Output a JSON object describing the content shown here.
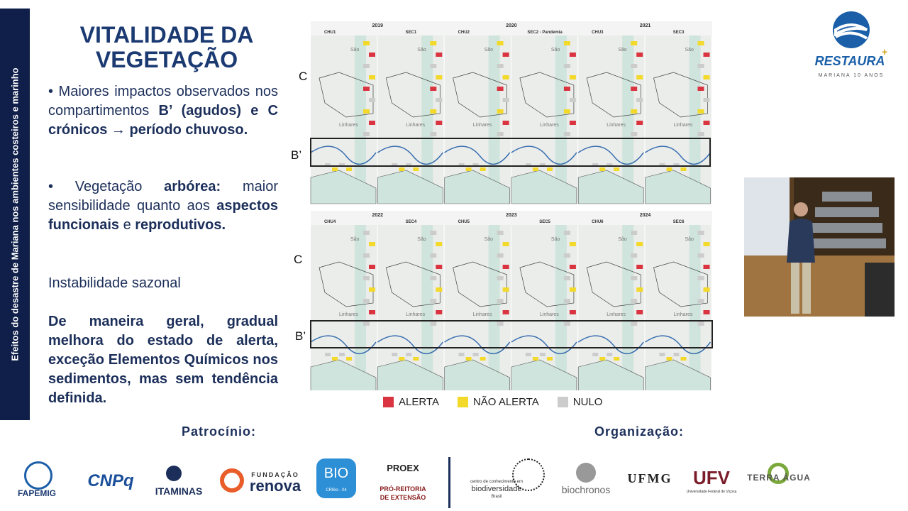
{
  "sidebar": "Efeitos do desastre de Mariana nos ambientes costeiros e marinho",
  "title": "VITALIDADE DA VEGETAÇÃO",
  "paragraphs": [
    [
      {
        "text": "• Maiores impactos observados nos compartimentos ",
        "bold": false
      },
      {
        "text": "B’ (agudos) e C crónicos → período chuvoso.",
        "bold": true
      }
    ],
    [
      {
        "text": "• Vegetação ",
        "bold": false
      },
      {
        "text": "arbórea:",
        "bold": true
      },
      {
        "text": " maior sensibilidade quanto aos ",
        "bold": false
      },
      {
        "text": "aspectos funcionais",
        "bold": true
      },
      {
        "text": " e ",
        "bold": false
      },
      {
        "text": "reprodutivos.",
        "bold": true
      }
    ],
    [
      {
        "text": "Instabilidade sazonal",
        "bold": false
      }
    ],
    [
      {
        "text": "De maneira geral, gradual melhora do estado de alerta, exceção Elementos Químicos nos sedimentos, mas sem tendência definida.",
        "bold": true
      }
    ]
  ],
  "maps": {
    "rows": [
      {
        "years": [
          "2019",
          "2020",
          "2021"
        ],
        "panels": [
          "CHU1",
          "SEC1",
          "CHU2",
          "SEC2 - Pandemia",
          "CHU3",
          "SEC3"
        ]
      },
      {
        "years": [
          "2022",
          "2023",
          "2024"
        ],
        "panels": [
          "CHU4",
          "SEC4",
          "CHU5",
          "SEC5",
          "CHU6",
          "SEC6"
        ]
      }
    ],
    "row_labels": [
      "C",
      "B’"
    ],
    "place_labels": [
      "São",
      "Linhares"
    ]
  },
  "legend": [
    {
      "label": "ALERTA",
      "color": "#d9343f"
    },
    {
      "label": "NÃO ALERTA",
      "color": "#f2d92a"
    },
    {
      "label": "NULO",
      "color": "#cccccc"
    }
  ],
  "logo": {
    "name": "RESTAURA",
    "subtitle": "MARIANA 10 ANOS"
  },
  "sponsors_title": "Patrocínio:",
  "sponsors": [
    "FAPEMIG",
    "CNPq",
    "ITAMINAS",
    "FUNDAÇÃO",
    "renova",
    "BIO",
    "CRBio - 04",
    "PROEX",
    "PRÓ-REITORIA",
    "DE EXTENSÃO"
  ],
  "organizers_title": "Organização:",
  "organizers": [
    "centro de conhecimento em",
    "biodiversidade",
    "Brasil",
    "biochronos",
    "UFMG",
    "UFV",
    "Universidade Federal de Viçosa",
    "TERRA ÁGUA"
  ]
}
